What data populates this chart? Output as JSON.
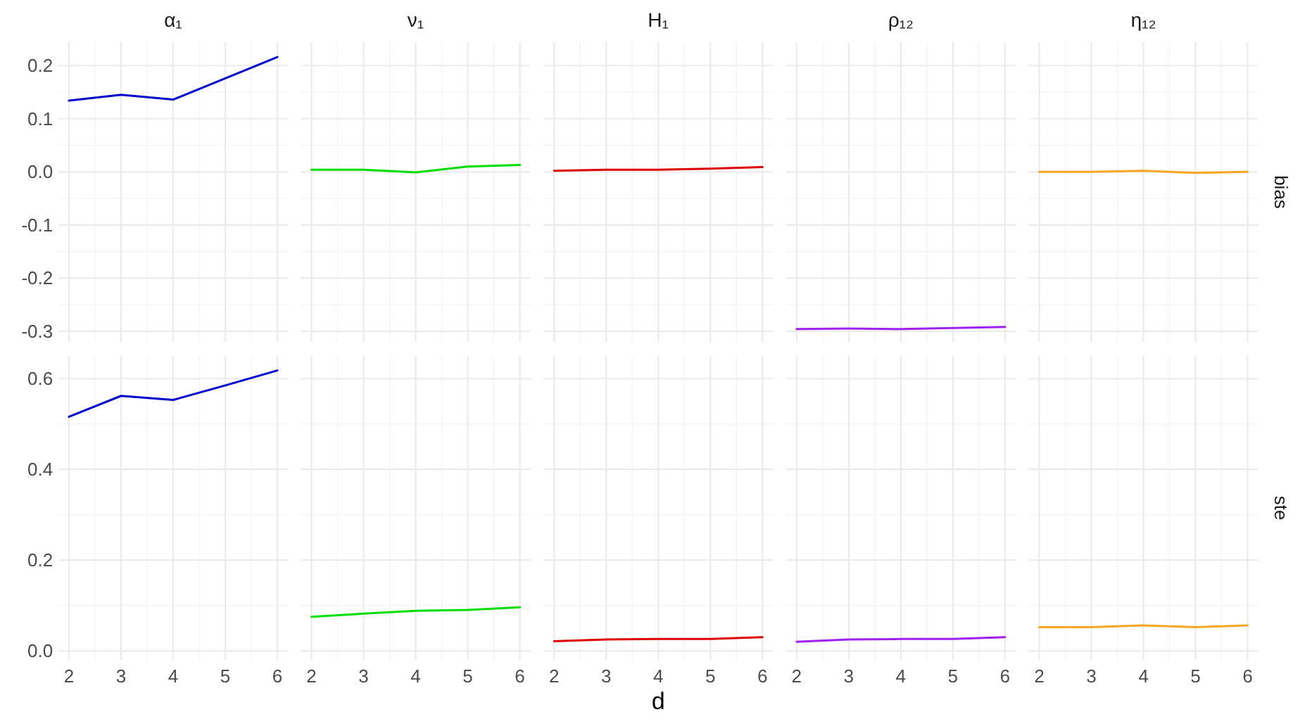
{
  "chart_data": [
    {
      "type": "line",
      "title": "α₁",
      "x": [
        2,
        3,
        4,
        5,
        6
      ],
      "xlim": [
        1.8,
        6.2
      ],
      "xticks": [
        2,
        3,
        4,
        5,
        6
      ],
      "ylim": [
        -0.32,
        0.244
      ],
      "yticks": [
        {
          "value": -0.3,
          "label": "-0.3"
        },
        {
          "value": -0.2,
          "label": "-0.2"
        },
        {
          "value": -0.1,
          "label": "-0.1"
        },
        {
          "value": 0,
          "label": "0.0"
        },
        {
          "value": 0.1,
          "label": "0.1"
        },
        {
          "value": 0.2,
          "label": "0.2"
        }
      ],
      "grid": true,
      "tick_labels": "y",
      "series": [
        {
          "color": "#0000cd",
          "values": [
            0.134,
            0.145,
            0.136,
            0.176,
            0.216
          ]
        }
      ]
    },
    {
      "type": "line",
      "title": "ν₁",
      "x": [
        2,
        3,
        4,
        5,
        6
      ],
      "xlim": [
        1.8,
        6.2
      ],
      "xticks": [
        2,
        3,
        4,
        5,
        6
      ],
      "ylim": [
        -0.32,
        0.244
      ],
      "yticks": [
        -0.3,
        -0.2,
        -0.1,
        0,
        0.1,
        0.2
      ],
      "grid": true,
      "tick_labels": false,
      "series": [
        {
          "color": "#00dd00",
          "values": [
            0.004,
            0.004,
            -0.001,
            0.01,
            0.013
          ]
        }
      ]
    },
    {
      "type": "line",
      "title": "H₁",
      "x": [
        2,
        3,
        4,
        5,
        6
      ],
      "xlim": [
        1.8,
        6.2
      ],
      "xticks": [
        2,
        3,
        4,
        5,
        6
      ],
      "ylim": [
        -0.32,
        0.244
      ],
      "yticks": [
        -0.3,
        -0.2,
        -0.1,
        0,
        0.1,
        0.2
      ],
      "grid": true,
      "tick_labels": false,
      "series": [
        {
          "color": "#dd0000",
          "values": [
            0.002,
            0.004,
            0.004,
            0.006,
            0.009
          ]
        }
      ]
    },
    {
      "type": "line",
      "title": "ρ₁₂",
      "x": [
        2,
        3,
        4,
        5,
        6
      ],
      "xlim": [
        1.8,
        6.2
      ],
      "xticks": [
        2,
        3,
        4,
        5,
        6
      ],
      "ylim": [
        -0.32,
        0.244
      ],
      "yticks": [
        -0.3,
        -0.2,
        -0.1,
        0,
        0.1,
        0.2
      ],
      "grid": true,
      "tick_labels": false,
      "series": [
        {
          "color": "#a020f0",
          "values": [
            -0.296,
            -0.295,
            -0.296,
            -0.294,
            -0.292
          ]
        }
      ]
    },
    {
      "type": "line",
      "title": "η₁₂",
      "x": [
        2,
        3,
        4,
        5,
        6
      ],
      "xlim": [
        1.8,
        6.2
      ],
      "xticks": [
        2,
        3,
        4,
        5,
        6
      ],
      "ylim": [
        -0.32,
        0.244
      ],
      "yticks": [
        -0.3,
        -0.2,
        -0.1,
        0,
        0.1,
        0.2
      ],
      "grid": true,
      "tick_labels": false,
      "annotations": [
        "bias"
      ],
      "series": [
        {
          "color": "#f5a623",
          "values": [
            0.0,
            0.0,
            0.002,
            -0.002,
            0.0
          ]
        }
      ]
    },
    {
      "type": "line",
      "x": [
        2,
        3,
        4,
        5,
        6
      ],
      "xlim": [
        1.8,
        6.2
      ],
      "xticks": [
        2,
        3,
        4,
        5,
        6
      ],
      "ylim": [
        -0.02,
        0.65
      ],
      "yticks": [
        {
          "value": 0,
          "label": "0.0"
        },
        {
          "value": 0.2,
          "label": "0.2"
        },
        {
          "value": 0.4,
          "label": "0.4"
        },
        {
          "value": 0.6,
          "label": "0.6"
        }
      ],
      "grid": true,
      "series": [
        {
          "color": "#0000cd",
          "values": [
            0.516,
            0.562,
            0.553,
            0.585,
            0.618
          ]
        }
      ]
    },
    {
      "type": "line",
      "x": [
        2,
        3,
        4,
        5,
        6
      ],
      "xlim": [
        1.8,
        6.2
      ],
      "xticks": [
        2,
        3,
        4,
        5,
        6
      ],
      "ylim": [
        -0.02,
        0.65
      ],
      "yticks": [
        0,
        0.2,
        0.4,
        0.6
      ],
      "grid": true,
      "tick_labels": "x",
      "series": [
        {
          "color": "#00dd00",
          "values": [
            0.075,
            0.082,
            0.088,
            0.09,
            0.096
          ]
        }
      ]
    },
    {
      "type": "line",
      "xlabel": "d",
      "x": [
        2,
        3,
        4,
        5,
        6
      ],
      "xlim": [
        1.8,
        6.2
      ],
      "xticks": [
        2,
        3,
        4,
        5,
        6
      ],
      "ylim": [
        -0.02,
        0.65
      ],
      "yticks": [
        0,
        0.2,
        0.4,
        0.6
      ],
      "grid": true,
      "tick_labels": "x",
      "series": [
        {
          "color": "#dd0000",
          "values": [
            0.021,
            0.025,
            0.026,
            0.026,
            0.03
          ]
        }
      ]
    },
    {
      "type": "line",
      "x": [
        2,
        3,
        4,
        5,
        6
      ],
      "xlim": [
        1.8,
        6.2
      ],
      "xticks": [
        2,
        3,
        4,
        5,
        6
      ],
      "ylim": [
        -0.02,
        0.65
      ],
      "yticks": [
        0,
        0.2,
        0.4,
        0.6
      ],
      "grid": true,
      "tick_labels": "x",
      "series": [
        {
          "color": "#a020f0",
          "values": [
            0.02,
            0.025,
            0.026,
            0.026,
            0.03
          ]
        }
      ]
    },
    {
      "type": "line",
      "x": [
        2,
        3,
        4,
        5,
        6
      ],
      "xlim": [
        1.8,
        6.2
      ],
      "xticks": [
        2,
        3,
        4,
        5,
        6
      ],
      "ylim": [
        -0.02,
        0.65
      ],
      "yticks": [
        0,
        0.2,
        0.4,
        0.6
      ],
      "grid": true,
      "tick_labels": "x",
      "annotations": [
        "ste"
      ],
      "series": [
        {
          "color": "#f5a623",
          "values": [
            0.052,
            0.052,
            0.056,
            0.052,
            0.056
          ]
        }
      ]
    }
  ]
}
